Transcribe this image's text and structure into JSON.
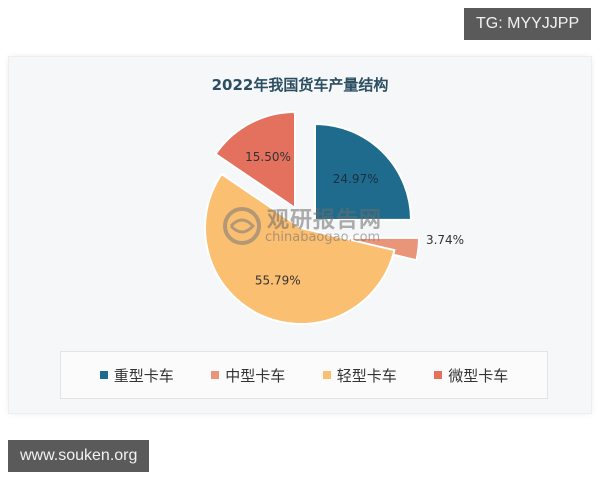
{
  "watermarks": {
    "tg": "TG: MYYJJPP",
    "url": "www.souken.org",
    "brand_title": "观研报告网",
    "brand_url": "chinabaogao.com"
  },
  "chart": {
    "title": "2022年我国货车产量结构"
  },
  "chart_data": {
    "type": "pie",
    "title": "2022年我国货车产量结构",
    "categories": [
      "重型卡车",
      "中型卡车",
      "轻型卡车",
      "微型卡车"
    ],
    "values": [
      24.97,
      3.74,
      55.79,
      15.5
    ],
    "labels": [
      "24.97%",
      "3.74%",
      "55.79%",
      "15.50%"
    ],
    "colors": [
      "#1f6b8e",
      "#e8957a",
      "#fbbf72",
      "#e4705e"
    ],
    "exploded": true,
    "legend_position": "bottom"
  },
  "legend": {
    "items": [
      {
        "label": "重型卡车",
        "color": "#1f6b8e"
      },
      {
        "label": "中型卡车",
        "color": "#e8957a"
      },
      {
        "label": "轻型卡车",
        "color": "#fbbf72"
      },
      {
        "label": "微型卡车",
        "color": "#e4705e"
      }
    ]
  }
}
